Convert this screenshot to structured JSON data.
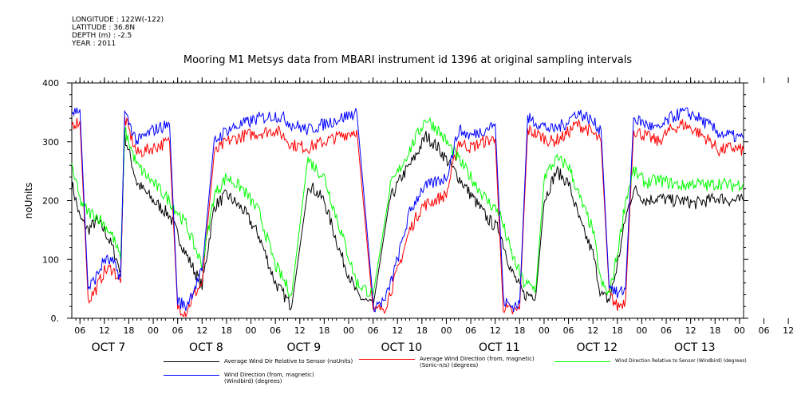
{
  "meta": {
    "longitude": "LONGITUDE : 122W(-122)",
    "latitude": "LATITUDE : 36.8N",
    "depth": "DEPTH (m) : -2.5",
    "year": "YEAR : 2011"
  },
  "chart_data": {
    "type": "line",
    "title": "Mooring M1 Metsys data from MBARI instrument id 1396 at original sampling intervals",
    "ylabel": "noUnits",
    "xlabel": "",
    "ylim": [
      0,
      400
    ],
    "yticks": [
      0,
      100,
      200,
      300,
      400
    ],
    "ytick_labels": [
      "0.",
      "100",
      "200",
      "300",
      "400"
    ],
    "xlim_hours": [
      0,
      165
    ],
    "x_ticks": {
      "hour_labels": [
        "06",
        "12",
        "18",
        "00",
        "06",
        "12",
        "18",
        "00",
        "06",
        "12",
        "18",
        "00",
        "06",
        "12",
        "18",
        "00",
        "06",
        "12",
        "18",
        "00",
        "06",
        "12",
        "18",
        "00",
        "06",
        "12",
        "18",
        "00",
        "06",
        "12",
        "18",
        "00"
      ],
      "day_labels": [
        "OCT  7",
        "OCT  8",
        "OCT  9",
        "OCT 10",
        "OCT 11",
        "OCT 12",
        "OCT 13"
      ]
    },
    "series": [
      {
        "name": "Average Wind Dir Relative to Sensor (noUnits)",
        "color": "#000000",
        "keypoints": [
          [
            0,
            230
          ],
          [
            2,
            170
          ],
          [
            4,
            150
          ],
          [
            6,
            165
          ],
          [
            8,
            150
          ],
          [
            10,
            120
          ],
          [
            12,
            80
          ],
          [
            13,
            310
          ],
          [
            16,
            230
          ],
          [
            20,
            200
          ],
          [
            24,
            175
          ],
          [
            28,
            110
          ],
          [
            32,
            55
          ],
          [
            35,
            190
          ],
          [
            38,
            210
          ],
          [
            42,
            185
          ],
          [
            46,
            140
          ],
          [
            50,
            60
          ],
          [
            54,
            20
          ],
          [
            58,
            230
          ],
          [
            62,
            200
          ],
          [
            66,
            110
          ],
          [
            70,
            40
          ],
          [
            74,
            20
          ],
          [
            78,
            200
          ],
          [
            81,
            240
          ],
          [
            84,
            270
          ],
          [
            87,
            310
          ],
          [
            90,
            290
          ],
          [
            93,
            260
          ],
          [
            96,
            230
          ],
          [
            99,
            200
          ],
          [
            102,
            170
          ],
          [
            105,
            150
          ],
          [
            108,
            80
          ],
          [
            111,
            40
          ],
          [
            114,
            40
          ],
          [
            116,
            200
          ],
          [
            119,
            250
          ],
          [
            122,
            230
          ],
          [
            125,
            160
          ],
          [
            128,
            110
          ],
          [
            130,
            40
          ],
          [
            132,
            30
          ],
          [
            134,
            90
          ],
          [
            136,
            170
          ],
          [
            138,
            220
          ],
          [
            141,
            200
          ],
          [
            144,
            205
          ],
          [
            147,
            200
          ],
          [
            150,
            200
          ],
          [
            153,
            195
          ],
          [
            156,
            200
          ],
          [
            159,
            205
          ],
          [
            162,
            200
          ],
          [
            165,
            200
          ]
        ]
      },
      {
        "name": "Average Wind Direction (from, magnetic) (Sonic-n/s) (degrees)",
        "color": "#ff0000",
        "keypoints": [
          [
            0,
            330
          ],
          [
            2,
            335
          ],
          [
            4,
            30
          ],
          [
            6,
            50
          ],
          [
            8,
            80
          ],
          [
            10,
            85
          ],
          [
            12,
            60
          ],
          [
            13,
            340
          ],
          [
            16,
            280
          ],
          [
            20,
            290
          ],
          [
            24,
            300
          ],
          [
            26,
            20
          ],
          [
            28,
            10
          ],
          [
            30,
            40
          ],
          [
            32,
            60
          ],
          [
            35,
            280
          ],
          [
            38,
            300
          ],
          [
            42,
            310
          ],
          [
            46,
            315
          ],
          [
            50,
            320
          ],
          [
            52,
            310
          ],
          [
            54,
            295
          ],
          [
            58,
            290
          ],
          [
            62,
            300
          ],
          [
            66,
            310
          ],
          [
            70,
            320
          ],
          [
            74,
            10
          ],
          [
            77,
            20
          ],
          [
            80,
            80
          ],
          [
            83,
            150
          ],
          [
            86,
            190
          ],
          [
            89,
            200
          ],
          [
            92,
            210
          ],
          [
            95,
            300
          ],
          [
            98,
            290
          ],
          [
            101,
            300
          ],
          [
            104,
            305
          ],
          [
            106,
            20
          ],
          [
            108,
            10
          ],
          [
            110,
            15
          ],
          [
            112,
            320
          ],
          [
            115,
            310
          ],
          [
            118,
            300
          ],
          [
            121,
            310
          ],
          [
            124,
            330
          ],
          [
            127,
            320
          ],
          [
            130,
            300
          ],
          [
            132,
            40
          ],
          [
            134,
            20
          ],
          [
            136,
            30
          ],
          [
            138,
            320
          ],
          [
            141,
            310
          ],
          [
            144,
            300
          ],
          [
            147,
            320
          ],
          [
            150,
            330
          ],
          [
            153,
            320
          ],
          [
            155,
            310
          ],
          [
            157,
            300
          ],
          [
            159,
            285
          ],
          [
            162,
            290
          ],
          [
            165,
            285
          ]
        ]
      },
      {
        "name": "Wind Direction Relative to Sensor (Windbird) (degrees)",
        "color": "#00ff00",
        "keypoints": [
          [
            0,
            260
          ],
          [
            2,
            200
          ],
          [
            4,
            180
          ],
          [
            6,
            175
          ],
          [
            8,
            160
          ],
          [
            10,
            140
          ],
          [
            12,
            100
          ],
          [
            13,
            320
          ],
          [
            16,
            260
          ],
          [
            20,
            230
          ],
          [
            24,
            200
          ],
          [
            28,
            160
          ],
          [
            32,
            90
          ],
          [
            35,
            210
          ],
          [
            38,
            240
          ],
          [
            42,
            220
          ],
          [
            46,
            180
          ],
          [
            50,
            90
          ],
          [
            54,
            40
          ],
          [
            58,
            270
          ],
          [
            62,
            240
          ],
          [
            66,
            150
          ],
          [
            70,
            60
          ],
          [
            74,
            40
          ],
          [
            78,
            220
          ],
          [
            81,
            260
          ],
          [
            84,
            300
          ],
          [
            87,
            340
          ],
          [
            90,
            320
          ],
          [
            93,
            290
          ],
          [
            96,
            260
          ],
          [
            99,
            230
          ],
          [
            102,
            200
          ],
          [
            105,
            180
          ],
          [
            108,
            110
          ],
          [
            111,
            60
          ],
          [
            114,
            50
          ],
          [
            116,
            240
          ],
          [
            119,
            270
          ],
          [
            122,
            260
          ],
          [
            125,
            200
          ],
          [
            128,
            150
          ],
          [
            130,
            60
          ],
          [
            132,
            40
          ],
          [
            134,
            110
          ],
          [
            136,
            200
          ],
          [
            138,
            250
          ],
          [
            141,
            230
          ],
          [
            144,
            235
          ],
          [
            147,
            230
          ],
          [
            150,
            225
          ],
          [
            153,
            230
          ],
          [
            156,
            225
          ],
          [
            159,
            230
          ],
          [
            162,
            225
          ],
          [
            165,
            230
          ]
        ]
      },
      {
        "name": "Wind Direction (from, magnetic) (Windbird) (degrees)",
        "color": "#0000ff",
        "keypoints": [
          [
            0,
            350
          ],
          [
            2,
            355
          ],
          [
            4,
            50
          ],
          [
            6,
            70
          ],
          [
            8,
            100
          ],
          [
            10,
            95
          ],
          [
            12,
            70
          ],
          [
            13,
            350
          ],
          [
            16,
            300
          ],
          [
            20,
            320
          ],
          [
            24,
            330
          ],
          [
            26,
            30
          ],
          [
            28,
            20
          ],
          [
            30,
            50
          ],
          [
            32,
            80
          ],
          [
            35,
            300
          ],
          [
            38,
            320
          ],
          [
            42,
            330
          ],
          [
            46,
            340
          ],
          [
            50,
            345
          ],
          [
            52,
            340
          ],
          [
            54,
            330
          ],
          [
            58,
            320
          ],
          [
            62,
            330
          ],
          [
            66,
            340
          ],
          [
            70,
            350
          ],
          [
            74,
            20
          ],
          [
            77,
            30
          ],
          [
            80,
            100
          ],
          [
            83,
            180
          ],
          [
            86,
            220
          ],
          [
            89,
            230
          ],
          [
            92,
            240
          ],
          [
            95,
            320
          ],
          [
            98,
            310
          ],
          [
            101,
            320
          ],
          [
            104,
            330
          ],
          [
            106,
            30
          ],
          [
            108,
            20
          ],
          [
            110,
            25
          ],
          [
            112,
            340
          ],
          [
            115,
            330
          ],
          [
            118,
            320
          ],
          [
            121,
            330
          ],
          [
            124,
            350
          ],
          [
            127,
            340
          ],
          [
            130,
            320
          ],
          [
            132,
            60
          ],
          [
            134,
            40
          ],
          [
            136,
            50
          ],
          [
            138,
            340
          ],
          [
            141,
            330
          ],
          [
            144,
            320
          ],
          [
            147,
            340
          ],
          [
            150,
            350
          ],
          [
            153,
            345
          ],
          [
            155,
            335
          ],
          [
            157,
            325
          ],
          [
            159,
            315
          ],
          [
            162,
            310
          ],
          [
            165,
            305
          ]
        ]
      }
    ]
  }
}
